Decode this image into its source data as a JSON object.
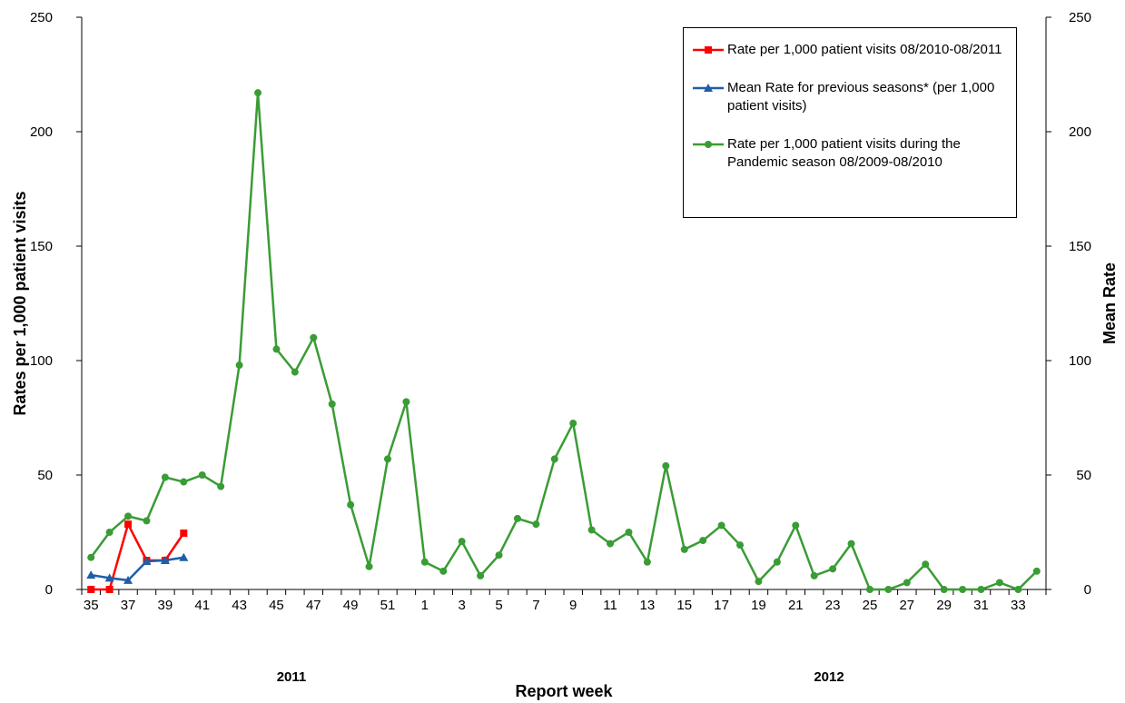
{
  "chart_data": {
    "type": "line",
    "categories": [
      "35",
      null,
      "37",
      null,
      "39",
      null,
      "41",
      null,
      "43",
      null,
      "45",
      null,
      "47",
      null,
      "49",
      null,
      "51",
      null,
      "1",
      null,
      "3",
      null,
      "5",
      null,
      "7",
      null,
      "9",
      null,
      "11",
      null,
      "13",
      null,
      "15",
      null,
      "17",
      null,
      "19",
      null,
      "21",
      null,
      "23",
      null,
      "25",
      null,
      "27",
      null,
      "29",
      null,
      "31",
      null,
      "33",
      null
    ],
    "series": [
      {
        "name": "Rate per 1,000 patient visits 08/2010-08/2011",
        "color": "#ff0000",
        "marker": "square",
        "values": [
          0,
          0,
          28.5,
          12.7,
          12.7,
          24.6,
          null,
          null,
          null,
          null,
          null,
          null,
          null,
          null,
          null,
          null,
          null,
          null,
          null,
          null,
          null,
          null,
          null,
          null,
          null,
          null,
          null,
          null,
          null,
          null,
          null,
          null,
          null,
          null,
          null,
          null,
          null,
          null,
          null,
          null,
          null,
          null,
          null,
          null,
          null,
          null,
          null,
          null,
          null,
          null,
          null,
          null
        ]
      },
      {
        "name": "Mean Rate  for previous seasons* (per 1,000 patient visits)",
        "color": "#1f5ea8",
        "marker": "triangle",
        "axis": "y2",
        "values": [
          6.3,
          5,
          4,
          12.3,
          12.7,
          14,
          null,
          null,
          null,
          null,
          null,
          null,
          null,
          null,
          null,
          null,
          null,
          null,
          null,
          null,
          null,
          null,
          null,
          null,
          null,
          null,
          null,
          null,
          null,
          null,
          null,
          null,
          null,
          null,
          null,
          null,
          null,
          null,
          null,
          null,
          null,
          null,
          null,
          null,
          null,
          null,
          null,
          null,
          null,
          null,
          null,
          null
        ]
      },
      {
        "name": "Rate per 1,000 patient visits during the Pandemic season 08/2009-08/2010",
        "color": "#3a9c35",
        "marker": "circle",
        "values": [
          14,
          25,
          32,
          30,
          49,
          47,
          50,
          45,
          98,
          217,
          105,
          95,
          110,
          81,
          37,
          10,
          57,
          82,
          12,
          8,
          21,
          6,
          15,
          31,
          28.5,
          57,
          72.6,
          26,
          20,
          25,
          12,
          54,
          17.5,
          21.4,
          28,
          19.4,
          3.5,
          12,
          28,
          6,
          9,
          20,
          0,
          0,
          3,
          11,
          0,
          0,
          0,
          3,
          0,
          8
        ]
      }
    ],
    "y_label": "Rates per 1,000 patient visits",
    "y2_label": "Mean Rate",
    "x_label": "Report week",
    "annotations": [
      "2011",
      "2012"
    ],
    "ylim": [
      0,
      250
    ],
    "yticks": [
      0,
      50,
      100,
      150,
      200,
      250
    ],
    "y2lim": [
      0,
      250
    ],
    "y2ticks": [
      0,
      50,
      100,
      150,
      200,
      250
    ],
    "legend": "upper right"
  }
}
